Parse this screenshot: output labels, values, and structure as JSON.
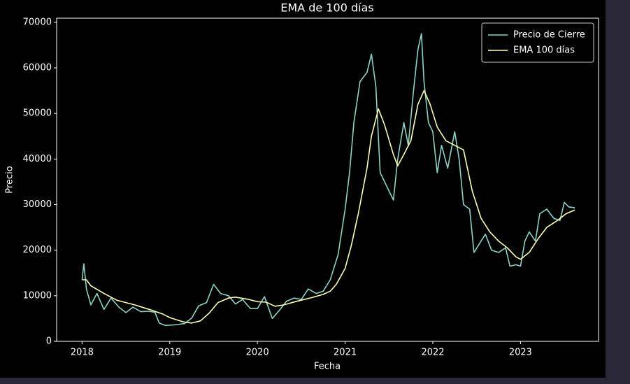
{
  "chart_data": {
    "type": "line",
    "title": "EMA de 100 días",
    "x_label": "Fecha",
    "y_label": "Precio",
    "xlim": [
      2017.71,
      2023.89
    ],
    "xticks": [
      2018,
      2019,
      2020,
      2021,
      2022,
      2023
    ],
    "ylim": [
      0,
      70900
    ],
    "yticks": [
      0,
      10000,
      20000,
      30000,
      40000,
      50000,
      60000,
      70000
    ],
    "grid": false,
    "legend": "upper right",
    "series": [
      {
        "name": "Precio de Cierre",
        "color": "#8dd3c7",
        "x": [
          2018.0,
          2018.02,
          2018.05,
          2018.1,
          2018.17,
          2018.25,
          2018.33,
          2018.42,
          2018.5,
          2018.58,
          2018.67,
          2018.75,
          2018.83,
          2018.88,
          2018.95,
          2019.05,
          2019.17,
          2019.25,
          2019.33,
          2019.42,
          2019.5,
          2019.58,
          2019.67,
          2019.75,
          2019.83,
          2019.92,
          2020.0,
          2020.08,
          2020.17,
          2020.25,
          2020.33,
          2020.42,
          2020.5,
          2020.58,
          2020.67,
          2020.75,
          2020.83,
          2020.92,
          2021.0,
          2021.05,
          2021.1,
          2021.17,
          2021.25,
          2021.3,
          2021.35,
          2021.4,
          2021.45,
          2021.5,
          2021.55,
          2021.6,
          2021.67,
          2021.72,
          2021.78,
          2021.83,
          2021.87,
          2021.9,
          2021.95,
          2022.0,
          2022.05,
          2022.1,
          2022.17,
          2022.25,
          2022.3,
          2022.35,
          2022.42,
          2022.47,
          2022.55,
          2022.6,
          2022.67,
          2022.75,
          2022.83,
          2022.88,
          2022.95,
          2023.0,
          2023.05,
          2023.1,
          2023.17,
          2023.22,
          2023.3,
          2023.38,
          2023.45,
          2023.5,
          2023.55,
          2023.62
        ],
        "values": [
          13500,
          17000,
          11500,
          8000,
          10500,
          7000,
          9500,
          7500,
          6300,
          7500,
          6500,
          6600,
          6400,
          4000,
          3500,
          3600,
          3900,
          5100,
          7800,
          8500,
          12500,
          10500,
          10000,
          8200,
          9200,
          7200,
          7200,
          9800,
          5000,
          6800,
          8800,
          9500,
          9200,
          11500,
          10500,
          11000,
          13500,
          19000,
          29000,
          37000,
          48000,
          57000,
          59000,
          63000,
          56000,
          37000,
          35000,
          33000,
          31000,
          40000,
          48000,
          43000,
          55000,
          64000,
          67500,
          57000,
          48000,
          46000,
          37000,
          43000,
          38000,
          46000,
          40000,
          30000,
          29000,
          19500,
          22000,
          23500,
          20000,
          19500,
          20500,
          16500,
          16800,
          16500,
          22000,
          24000,
          22000,
          28000,
          29000,
          27000,
          26500,
          30500,
          29500,
          29300
        ]
      },
      {
        "name": "EMA 100 días",
        "color": "#feffb3",
        "x": [
          2018.0,
          2018.05,
          2018.1,
          2018.25,
          2018.4,
          2018.6,
          2018.8,
          2018.92,
          2019.0,
          2019.15,
          2019.25,
          2019.35,
          2019.45,
          2019.55,
          2019.67,
          2019.75,
          2019.9,
          2020.0,
          2020.1,
          2020.2,
          2020.3,
          2020.45,
          2020.6,
          2020.75,
          2020.83,
          2020.9,
          2021.0,
          2021.07,
          2021.15,
          2021.25,
          2021.3,
          2021.38,
          2021.45,
          2021.55,
          2021.6,
          2021.67,
          2021.75,
          2021.83,
          2021.9,
          2021.97,
          2022.05,
          2022.15,
          2022.25,
          2022.35,
          2022.45,
          2022.55,
          2022.65,
          2022.75,
          2022.85,
          2022.95,
          2023.0,
          2023.1,
          2023.2,
          2023.3,
          2023.42,
          2023.52,
          2023.62
        ],
        "values": [
          13500,
          13500,
          12200,
          10500,
          9000,
          8000,
          6800,
          6000,
          5200,
          4300,
          4000,
          4500,
          6200,
          8500,
          9500,
          9700,
          9200,
          8700,
          8600,
          7700,
          8000,
          8800,
          9500,
          10300,
          11000,
          12500,
          16000,
          21000,
          28000,
          38000,
          45000,
          51000,
          47500,
          41000,
          38500,
          41000,
          44000,
          52000,
          55000,
          52000,
          47000,
          44000,
          43000,
          42000,
          33000,
          27000,
          24000,
          22000,
          20500,
          18500,
          18000,
          19500,
          22500,
          25000,
          26500,
          28000,
          28800
        ]
      }
    ]
  }
}
